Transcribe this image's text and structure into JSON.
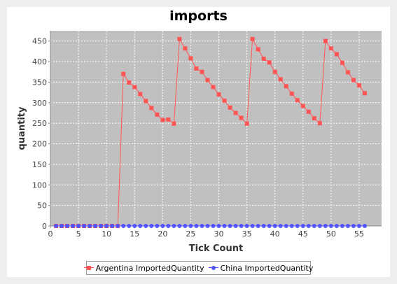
{
  "chart_data": {
    "type": "line",
    "title": "imports",
    "xlabel": "Tick Count",
    "ylabel": "quantity",
    "xlim": [
      0,
      59
    ],
    "ylim": [
      0,
      475
    ],
    "xticks": [
      0,
      5,
      10,
      15,
      20,
      25,
      30,
      35,
      40,
      45,
      50,
      55
    ],
    "yticks": [
      0,
      50,
      100,
      150,
      200,
      250,
      300,
      350,
      400,
      450
    ],
    "grid": true,
    "legend_position": "bottom",
    "background_color": "#c0c0c0",
    "series": [
      {
        "name": "Argentina ImportedQuantity",
        "color": "#ff5555",
        "marker": "square",
        "x": [
          1,
          2,
          3,
          4,
          5,
          6,
          7,
          8,
          9,
          10,
          11,
          12,
          13,
          14,
          15,
          16,
          17,
          18,
          19,
          20,
          21,
          22,
          23,
          24,
          25,
          26,
          27,
          28,
          29,
          30,
          31,
          32,
          33,
          34,
          35,
          36,
          37,
          38,
          39,
          40,
          41,
          42,
          43,
          44,
          45,
          46,
          47,
          48,
          49,
          50,
          51,
          52,
          53,
          54,
          55,
          56
        ],
        "values": [
          0,
          0,
          0,
          0,
          0,
          0,
          0,
          0,
          0,
          0,
          0,
          0,
          370,
          349,
          338,
          321,
          304,
          287,
          271,
          258,
          259,
          249,
          455,
          432,
          408,
          383,
          375,
          355,
          338,
          320,
          305,
          288,
          275,
          263,
          249,
          455,
          430,
          407,
          398,
          375,
          357,
          340,
          322,
          306,
          292,
          278,
          262,
          250,
          450,
          432,
          418,
          397,
          374,
          355,
          342,
          323
        ]
      },
      {
        "name": "China ImportedQuantity",
        "color": "#5555ff",
        "marker": "circle",
        "x": [
          1,
          2,
          3,
          4,
          5,
          6,
          7,
          8,
          9,
          10,
          11,
          12,
          13,
          14,
          15,
          16,
          17,
          18,
          19,
          20,
          21,
          22,
          23,
          24,
          25,
          26,
          27,
          28,
          29,
          30,
          31,
          32,
          33,
          34,
          35,
          36,
          37,
          38,
          39,
          40,
          41,
          42,
          43,
          44,
          45,
          46,
          47,
          48,
          49,
          50,
          51,
          52,
          53,
          54,
          55,
          56
        ],
        "values": [
          0,
          0,
          0,
          0,
          0,
          0,
          0,
          0,
          0,
          0,
          0,
          0,
          0,
          0,
          0,
          0,
          0,
          0,
          0,
          0,
          0,
          0,
          0,
          0,
          0,
          0,
          0,
          0,
          0,
          0,
          0,
          0,
          0,
          0,
          0,
          0,
          0,
          0,
          0,
          0,
          0,
          0,
          0,
          0,
          0,
          0,
          0,
          0,
          0,
          0,
          0,
          0,
          0,
          0,
          0,
          0
        ]
      }
    ]
  }
}
